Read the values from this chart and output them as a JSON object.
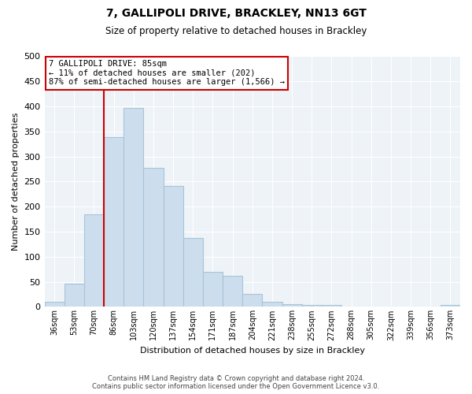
{
  "title": "7, GALLIPOLI DRIVE, BRACKLEY, NN13 6GT",
  "subtitle": "Size of property relative to detached houses in Brackley",
  "xlabel": "Distribution of detached houses by size in Brackley",
  "ylabel": "Number of detached properties",
  "bar_labels": [
    "36sqm",
    "53sqm",
    "70sqm",
    "86sqm",
    "103sqm",
    "120sqm",
    "137sqm",
    "154sqm",
    "171sqm",
    "187sqm",
    "204sqm",
    "221sqm",
    "238sqm",
    "255sqm",
    "272sqm",
    "288sqm",
    "305sqm",
    "322sqm",
    "339sqm",
    "356sqm",
    "373sqm"
  ],
  "bar_values": [
    10,
    47,
    185,
    338,
    397,
    277,
    242,
    137,
    70,
    62,
    25,
    10,
    5,
    3,
    3,
    0,
    0,
    0,
    0,
    0,
    3
  ],
  "bar_color": "#ccdded",
  "bar_edge_color": "#a8c4d8",
  "vline_x_index": 3,
  "vline_color": "#cc0000",
  "annotation_line1": "7 GALLIPOLI DRIVE: 85sqm",
  "annotation_line2": "← 11% of detached houses are smaller (202)",
  "annotation_line3": "87% of semi-detached houses are larger (1,566) →",
  "annotation_box_color": "#ffffff",
  "annotation_box_edgecolor": "#cc0000",
  "ylim": [
    0,
    500
  ],
  "yticks": [
    0,
    50,
    100,
    150,
    200,
    250,
    300,
    350,
    400,
    450,
    500
  ],
  "footer_line1": "Contains HM Land Registry data © Crown copyright and database right 2024.",
  "footer_line2": "Contains public sector information licensed under the Open Government Licence v3.0.",
  "bg_color": "#ffffff",
  "plot_bg_color": "#eef3f8",
  "grid_color": "#ffffff"
}
